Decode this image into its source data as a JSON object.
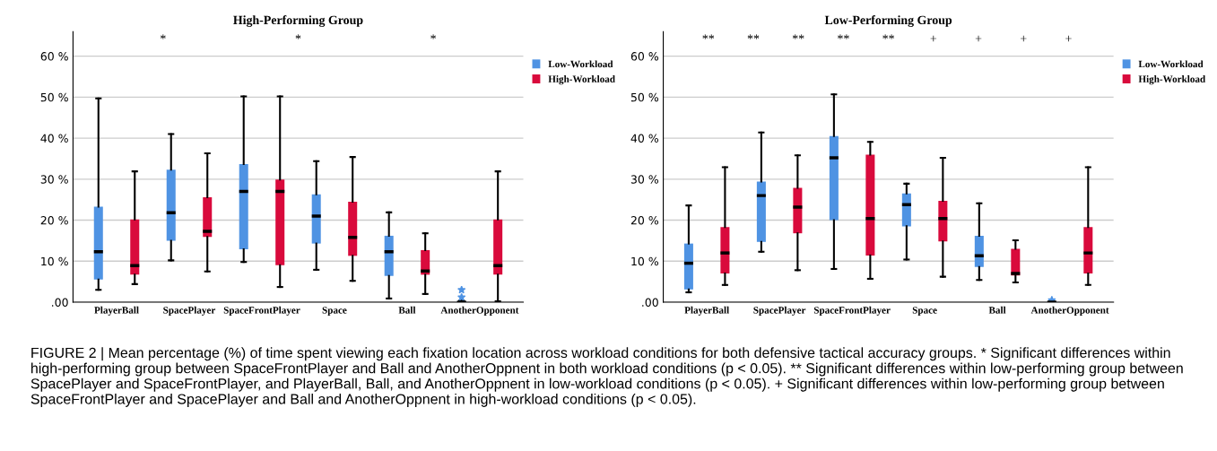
{
  "chart_data": [
    {
      "type": "box",
      "title": "High-Performing Group",
      "categories": [
        "PlayerBall",
        "SpacePlayer",
        "SpaceFrontPlayer",
        "Space",
        "Ball",
        "AnotherOpponent"
      ],
      "ylim": [
        0,
        66
      ],
      "yticks": [
        {
          "value": 0,
          "label": ".00"
        },
        {
          "value": 10,
          "label": "10 %"
        },
        {
          "value": 20,
          "label": "20 %"
        },
        {
          "value": 30,
          "label": "30 %"
        },
        {
          "value": 40,
          "label": "40 %"
        },
        {
          "value": 50,
          "label": "50 %"
        },
        {
          "value": 60,
          "label": "60 %"
        }
      ],
      "grid": "y",
      "legend": "right",
      "series": [
        {
          "name": "Low-Workload",
          "color": "#4f93e3",
          "boxes": [
            {
              "low": 3,
              "q1": 5.5,
              "median": 12.3,
              "q3": 23.3,
              "high": 49.7
            },
            {
              "low": 10.2,
              "q1": 15,
              "median": 21.8,
              "q3": 32.3,
              "high": 41
            },
            {
              "low": 9.8,
              "q1": 12.9,
              "median": 27,
              "q3": 33.7,
              "high": 50.2
            },
            {
              "low": 7.9,
              "q1": 14.3,
              "median": 21,
              "q3": 26.3,
              "high": 34.4
            },
            {
              "low": 0.9,
              "q1": 6.4,
              "median": 12.3,
              "q3": 16.2,
              "high": 21.9
            },
            {
              "low": 0,
              "q1": 0,
              "median": 0,
              "q3": 0.2,
              "high": 0.4,
              "outliers": [
                1.2,
                3
              ]
            }
          ]
        },
        {
          "name": "High-Workload",
          "color": "#d90a3c",
          "boxes": [
            {
              "low": 4.4,
              "q1": 6.7,
              "median": 8.9,
              "q3": 20.2,
              "high": 31.9
            },
            {
              "low": 7.5,
              "q1": 15.9,
              "median": 17.3,
              "q3": 25.6,
              "high": 36.3
            },
            {
              "low": 3.7,
              "q1": 9,
              "median": 27,
              "q3": 29.9,
              "high": 50.2
            },
            {
              "low": 5.2,
              "q1": 11.3,
              "median": 15.8,
              "q3": 24.5,
              "high": 35.4
            },
            {
              "low": 2,
              "q1": 6.7,
              "median": 7.6,
              "q3": 12.7,
              "high": 16.8
            },
            {
              "low": 0.2,
              "q1": 6.7,
              "median": 8.9,
              "q3": 20.2,
              "high": 31.9
            }
          ]
        }
      ],
      "annotations": [
        "*",
        "*",
        "*",
        "FIGURE 2 | Mean percentage (%) of time spent viewing each fixation location across workload conditions for both defensive tactical accuracy groups. * Significant differences within high-performing group between SpaceFrontPlayer and Ball and AnotherOppnent in both workload conditions (p < 0.05). ** Significant differences within low-performing group between SpacePlayer and SpaceFrontPlayer, and PlayerBall, Ball, and AnotherOppnent in low-workload conditions (p < 0.05). + Significant differences within low-performing group between SpaceFrontPlayer and SpacePlayer and Ball and AnotherOppnent in high-workload conditions (p < 0.05)."
      ]
    },
    {
      "type": "box",
      "title": "Low-Performing Group",
      "categories": [
        "PlayerBall",
        "SpacePlayer",
        "SpaceFrontPlayer",
        "Space",
        "Ball",
        "AnotherOpponent"
      ],
      "ylim": [
        0,
        66
      ],
      "yticks": [
        {
          "value": 0,
          "label": ".00"
        },
        {
          "value": 10,
          "label": "10 %"
        },
        {
          "value": 20,
          "label": "20 %"
        },
        {
          "value": 30,
          "label": "30 %"
        },
        {
          "value": 40,
          "label": "40 %"
        },
        {
          "value": 50,
          "label": "50 %"
        },
        {
          "value": 60,
          "label": "60 %"
        }
      ],
      "grid": "y",
      "legend": "right",
      "series": [
        {
          "name": "Low-Workload",
          "color": "#4f93e3",
          "boxes": [
            {
              "low": 2.4,
              "q1": 3.1,
              "median": 9.5,
              "q3": 14.3,
              "high": 23.6
            },
            {
              "low": 12.3,
              "q1": 14.7,
              "median": 26,
              "q3": 29.4,
              "high": 41.4
            },
            {
              "low": 8.1,
              "q1": 20,
              "median": 35.2,
              "q3": 40.5,
              "high": 50.7
            },
            {
              "low": 10.4,
              "q1": 18.5,
              "median": 23.8,
              "q3": 26.5,
              "high": 28.9
            },
            {
              "low": 5.4,
              "q1": 8.6,
              "median": 11.3,
              "q3": 16.2,
              "high": 24.1
            },
            {
              "low": 0,
              "q1": 0,
              "median": 0,
              "q3": 0.1,
              "high": 0.2,
              "outliers": [
                0.5
              ]
            }
          ]
        },
        {
          "name": "High-Workload",
          "color": "#d90a3c",
          "boxes": [
            {
              "low": 4.2,
              "q1": 7,
              "median": 12,
              "q3": 18.3,
              "high": 32.9
            },
            {
              "low": 7.8,
              "q1": 16.8,
              "median": 23.2,
              "q3": 27.9,
              "high": 35.8
            },
            {
              "low": 5.7,
              "q1": 11.4,
              "median": 20.4,
              "q3": 36,
              "high": 39.1
            },
            {
              "low": 6.2,
              "q1": 14.8,
              "median": 20.4,
              "q3": 24.7,
              "high": 35.2
            },
            {
              "low": 4.8,
              "q1": 6.5,
              "median": 7,
              "q3": 13,
              "high": 15.1
            },
            {
              "low": 4.2,
              "q1": 7,
              "median": 12,
              "q3": 18.3,
              "high": 32.9
            }
          ]
        }
      ],
      "annotations": [
        "**",
        "**",
        "**",
        "**",
        "**",
        "+",
        "+",
        "+",
        "+"
      ]
    }
  ]
}
